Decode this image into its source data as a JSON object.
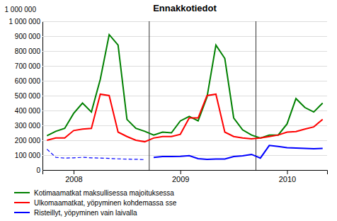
{
  "chart_data": {
    "type": "line",
    "title": "Ennakkotiedot",
    "y_label": "1 000 000",
    "categories": [
      null,
      null,
      null,
      "2008",
      null,
      null,
      null,
      null,
      null,
      null,
      null,
      null,
      null,
      null,
      null,
      "2009",
      null,
      null,
      null,
      null,
      null,
      null,
      null,
      null,
      null,
      null,
      null,
      "2010",
      null,
      null,
      null,
      null
    ],
    "vlines": [
      11.5,
      23.5
    ],
    "ylim": [
      0,
      1000000
    ],
    "yticks": [
      0,
      {
        "value": 100000,
        "label": "100 000"
      },
      {
        "value": 200000,
        "label": "200 000"
      },
      {
        "value": 300000,
        "label": "300 000"
      },
      {
        "value": 400000,
        "label": "400 000"
      },
      {
        "value": 500000,
        "label": "500 000"
      },
      {
        "value": 600000,
        "label": "600 000"
      },
      {
        "value": 700000,
        "label": "700 000"
      },
      {
        "value": 800000,
        "label": "800 000"
      },
      {
        "value": 900000,
        "label": "900 000"
      },
      {
        "value": 1000000,
        "label": "1 000 000"
      }
    ],
    "grid": true,
    "series": [
      {
        "name": "Kotimaamatkat maksullisessa majoituksessa",
        "color": "#008000",
        "line_style": "solid",
        "values": [
          230000,
          260000,
          280000,
          380000,
          450000,
          390000,
          610000,
          910000,
          840000,
          340000,
          280000,
          260000,
          235000,
          255000,
          250000,
          330000,
          360000,
          330000,
          490000,
          840000,
          750000,
          350000,
          270000,
          235000,
          215000,
          235000,
          235000,
          310000,
          480000,
          420000,
          390000,
          450000
        ]
      },
      {
        "name": "Ulkomaamatkat, yöpyminen kohdemassa sse",
        "color": "#FF0000",
        "line_style": "solid",
        "values": [
          200000,
          215000,
          215000,
          265000,
          275000,
          280000,
          510000,
          500000,
          255000,
          225000,
          200000,
          190000,
          215000,
          225000,
          225000,
          240000,
          350000,
          350000,
          500000,
          510000,
          255000,
          225000,
          215000,
          210000,
          215000,
          225000,
          235000,
          255000,
          258000,
          275000,
          290000,
          340000
        ]
      },
      {
        "color": "#0000FF",
        "line_style": "dashed",
        "values": [
          140000,
          85000,
          80000,
          82000,
          85000,
          82000,
          80000,
          78000,
          75000,
          73000,
          72000,
          70000,
          null,
          null,
          null,
          null,
          null,
          null,
          null,
          null,
          null,
          null,
          null,
          null,
          null,
          null,
          null,
          null,
          null,
          null,
          null,
          null
        ]
      },
      {
        "name": "Risteillyt, yöpyminen vain laivalla",
        "color": "#0000FF",
        "line_style": "solid",
        "values": [
          null,
          null,
          null,
          null,
          null,
          null,
          null,
          null,
          null,
          null,
          null,
          null,
          85000,
          90000,
          90000,
          92000,
          96000,
          76000,
          72000,
          74000,
          74000,
          90000,
          95000,
          105000,
          80000,
          165000,
          158000,
          150000,
          148000,
          145000,
          143000,
          145000
        ]
      }
    ]
  }
}
